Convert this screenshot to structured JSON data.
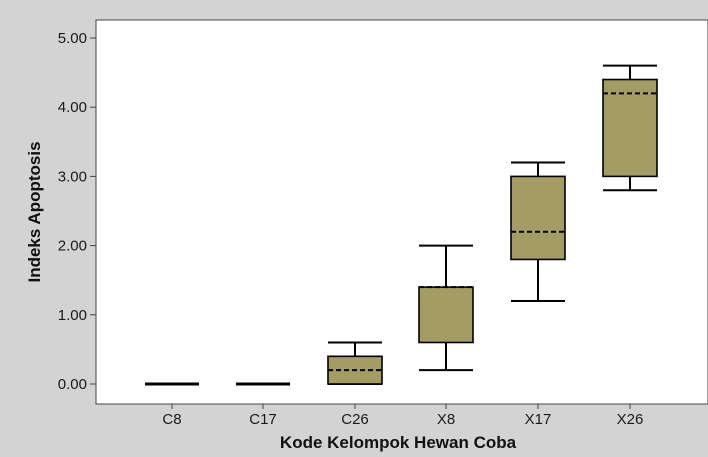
{
  "chart_data": {
    "type": "box",
    "xlabel": "Kode Kelompok Hewan Coba",
    "ylabel": "Indeks Apoptosis",
    "ylim": [
      -0.25,
      5.15
    ],
    "yticks": [
      0,
      1,
      2,
      3,
      4,
      5
    ],
    "ytick_labels": [
      "0.00",
      "1.00",
      "2.00",
      "3.00",
      "4.00",
      "5.00"
    ],
    "grid": false,
    "categories": [
      "C8",
      "C17",
      "C26",
      "X8",
      "X17",
      "X26"
    ],
    "boxes": [
      {
        "category": "C8",
        "min": 0.0,
        "q1": 0.0,
        "median": 0.0,
        "q3": 0.0,
        "max": 0.0
      },
      {
        "category": "C17",
        "min": 0.0,
        "q1": 0.0,
        "median": 0.0,
        "q3": 0.0,
        "max": 0.0
      },
      {
        "category": "C26",
        "min": 0.0,
        "q1": 0.0,
        "median": 0.2,
        "q3": 0.4,
        "max": 0.6
      },
      {
        "category": "X8",
        "min": 0.2,
        "q1": 0.6,
        "median": 1.4,
        "q3": 1.4,
        "max": 2.0
      },
      {
        "category": "X17",
        "min": 1.2,
        "q1": 1.8,
        "median": 2.2,
        "q3": 3.0,
        "max": 3.2
      },
      {
        "category": "X26",
        "min": 2.8,
        "q1": 3.0,
        "median": 4.2,
        "q3": 4.4,
        "max": 4.6
      }
    ],
    "colors": {
      "box_fill": "#a39c63",
      "frame_bg": "#d3d3d3",
      "plot_bg": "#ffffff",
      "line": "#000000"
    }
  }
}
